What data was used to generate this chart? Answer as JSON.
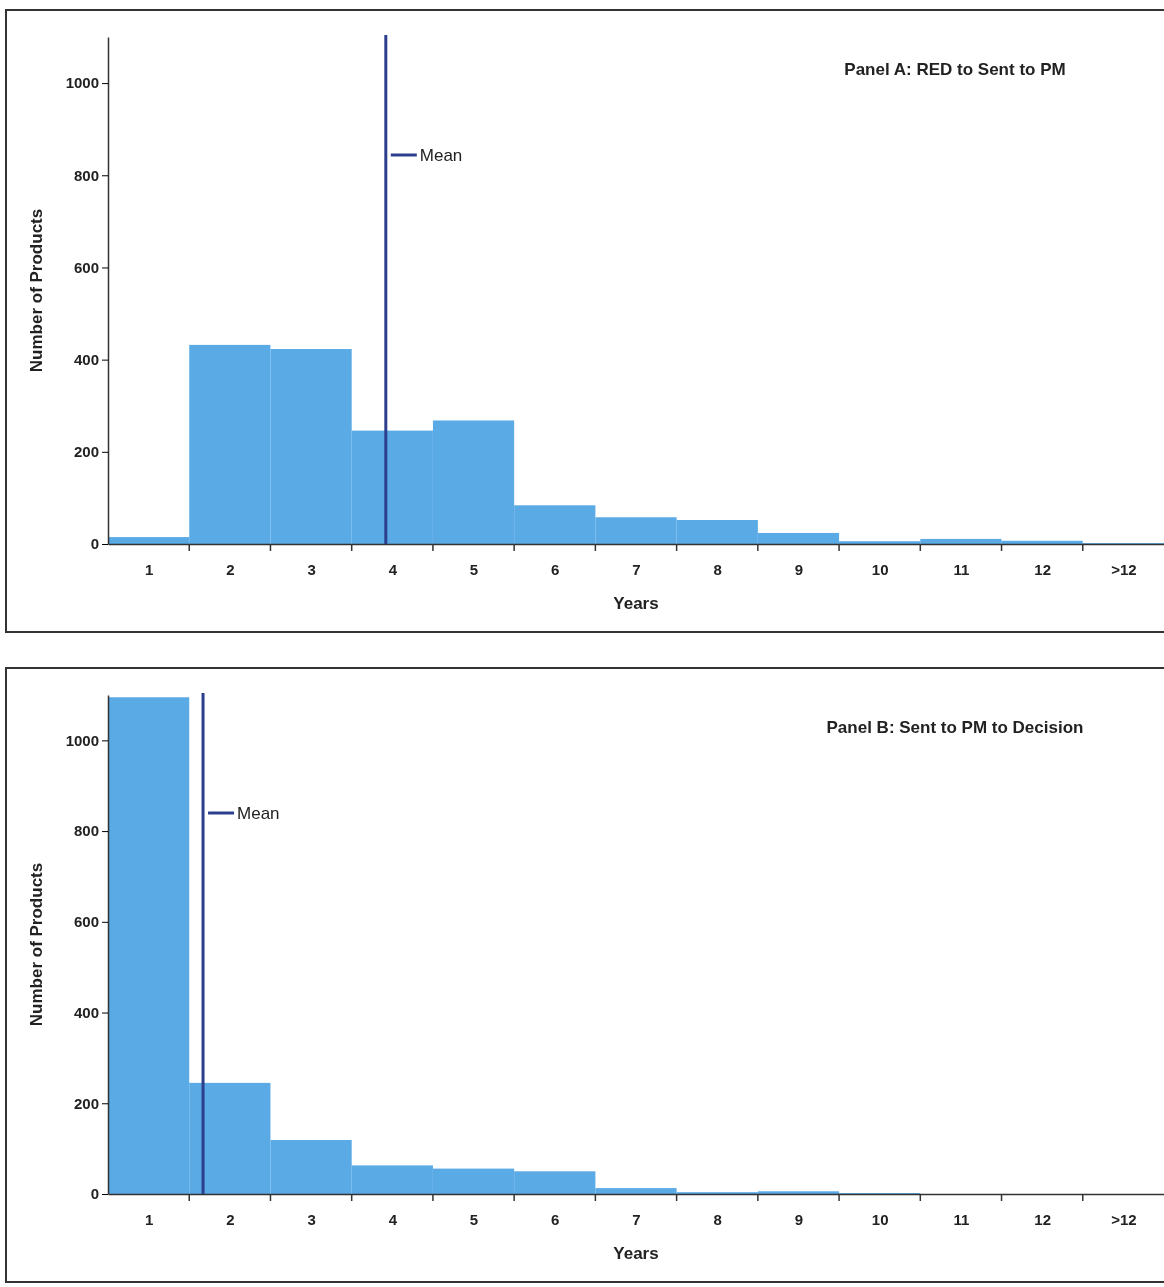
{
  "chart_data": [
    {
      "type": "bar",
      "title": "Panel A: RED to Sent to PM",
      "xlabel": "Years",
      "ylabel": "Number of Products",
      "x": [
        1,
        2,
        3,
        4,
        5,
        6,
        7,
        8,
        9,
        10,
        11,
        12,
        13
      ],
      "xlim": [
        0.5,
        13.5
      ],
      "xticks": [
        1,
        2,
        3,
        4,
        5,
        6,
        7,
        8,
        9,
        10,
        11,
        12,
        {
          "value": 13,
          "label": ">12"
        }
      ],
      "values": [
        15,
        432,
        423,
        246,
        268,
        84,
        58,
        52,
        24,
        6,
        11,
        7,
        2
      ],
      "color": "#5aaae6",
      "ylim": [
        0,
        1100
      ],
      "yticks": [
        0,
        200,
        400,
        600,
        800,
        1000
      ],
      "grid": false,
      "ref_lines": [
        {
          "axis": "x",
          "value": 3.92,
          "label": "Mean",
          "color": "#2b3f8c"
        }
      ]
    },
    {
      "type": "bar",
      "title": "Panel B: Sent to PM to Decision",
      "xlabel": "Years",
      "ylabel": "Number of Products",
      "x": [
        1,
        2,
        3,
        4,
        5,
        6,
        7,
        8,
        9,
        10,
        11,
        12,
        13
      ],
      "xlim": [
        0.5,
        13.5
      ],
      "xticks": [
        1,
        2,
        3,
        4,
        5,
        6,
        7,
        8,
        9,
        10,
        11,
        12,
        {
          "value": 13,
          "label": ">12"
        }
      ],
      "values": [
        1095,
        245,
        119,
        63,
        56,
        50,
        13,
        4,
        6,
        2,
        null,
        null,
        0
      ],
      "color": "#5aaae6",
      "ylim": [
        0,
        1100
      ],
      "yticks": [
        0,
        200,
        400,
        600,
        800,
        1000
      ],
      "grid": false,
      "ref_lines": [
        {
          "axis": "x",
          "value": 1.67,
          "label": "Mean",
          "color": "#2b3f8c"
        }
      ]
    }
  ]
}
